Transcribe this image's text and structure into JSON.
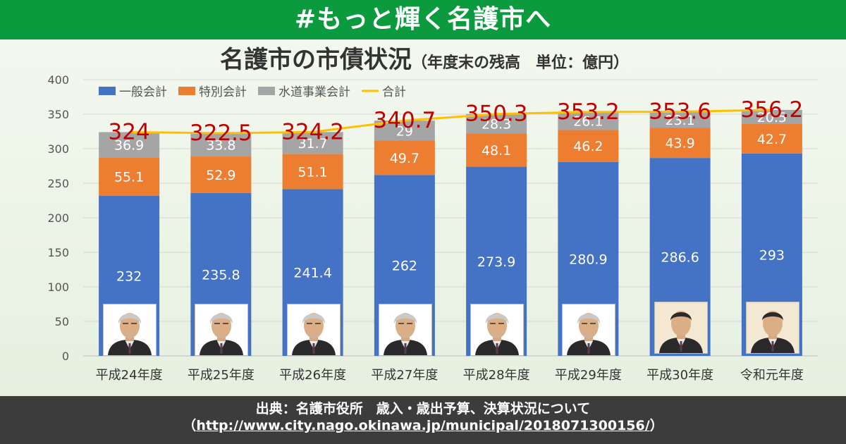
{
  "banner": {
    "title": "#もっと輝く名護市へ"
  },
  "chart_data": {
    "type": "bar",
    "stacked": true,
    "title": "名護市の市債状況",
    "subtitle": "（年度末の残高　単位：億円）",
    "categories": [
      "平成24年度",
      "平成25年度",
      "平成26年度",
      "平成27年度",
      "平成28年度",
      "平成29年度",
      "平成30年度",
      "令和元年度"
    ],
    "series": [
      {
        "name": "一般会計",
        "color": "#4472c4",
        "values": [
          232,
          235.8,
          241.4,
          262,
          273.9,
          280.9,
          286.6,
          293
        ]
      },
      {
        "name": "特別会計",
        "color": "#ed7d31",
        "values": [
          55.1,
          52.9,
          51.1,
          49.7,
          48.1,
          46.2,
          43.9,
          42.7
        ]
      },
      {
        "name": "水道事業会計",
        "color": "#a5a5a5",
        "values": [
          36.9,
          33.8,
          31.7,
          29,
          28.3,
          26.1,
          23.1,
          20.5
        ]
      }
    ],
    "total": {
      "name": "合計",
      "color": "#ffc000",
      "label_color": "#c00000",
      "values": [
        324,
        322.5,
        324.2,
        340.7,
        350.3,
        353.2,
        353.6,
        356.2
      ]
    },
    "ylim": [
      0,
      400
    ],
    "yticks": [
      0,
      50,
      100,
      150,
      200,
      250,
      300,
      350,
      400
    ],
    "grid": true,
    "legend": "top-left"
  },
  "footer": {
    "line1": "出典：名護市役所　歳入・歳出予算、決算状況について",
    "line2_open": "（",
    "url": "http://www.city.nago.okinawa.jp/municipal/2018071300156/",
    "line2_close": "）"
  }
}
